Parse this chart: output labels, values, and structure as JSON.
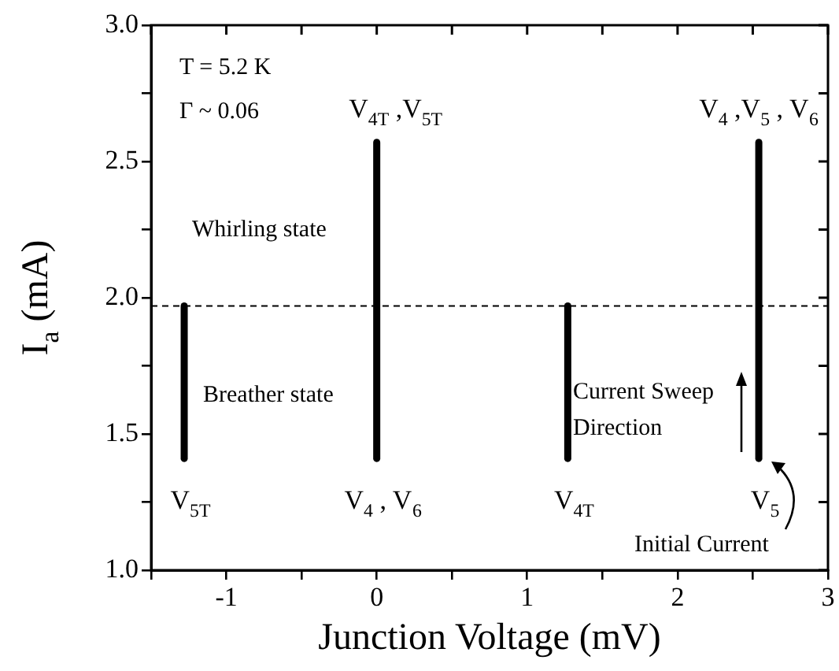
{
  "chart_data": {
    "type": "line",
    "xlabel": "Junction Voltage (mV)",
    "ylabel": "I$_{a}$ (mA)",
    "xlim": [
      -1.5,
      3
    ],
    "xticks": [
      {
        "value": -1.5,
        "label": null
      },
      -1,
      {
        "value": -0.5,
        "label": null
      },
      0,
      {
        "value": 0.5,
        "label": null
      },
      1,
      {
        "value": 1.5,
        "label": null
      },
      2,
      {
        "value": 2.5,
        "label": null
      },
      3
    ],
    "ylim": [
      1,
      3
    ],
    "yticks": [
      {
        "value": 1,
        "label": "1.0"
      },
      {
        "value": 1.25,
        "label": null
      },
      1.5,
      {
        "value": 1.75,
        "label": null
      },
      {
        "value": 2,
        "label": "2.0"
      },
      {
        "value": 2.25,
        "label": null
      },
      2.5,
      {
        "value": 2.75,
        "label": null
      },
      {
        "value": 3,
        "label": "3.0"
      }
    ],
    "series": [
      {
        "color": "#000000",
        "x": [
          -1.28,
          -1.28
        ],
        "values": [
          1.41,
          1.97
        ]
      },
      {
        "color": "#000000",
        "x": [
          0,
          0
        ],
        "values": [
          1.41,
          2.57
        ]
      },
      {
        "color": "#000000",
        "x": [
          1.27,
          1.27
        ],
        "values": [
          1.41,
          1.97
        ]
      },
      {
        "color": "#000000",
        "x": [
          2.54,
          2.54
        ],
        "values": [
          1.41,
          2.57
        ]
      }
    ],
    "ref_lines": [
      {
        "axis": "y",
        "value": 1.97,
        "color": "#000000",
        "line_style": "dashed"
      }
    ],
    "annotations": [
      "T = 5.2 K",
      "Γ ~ 0.06",
      "Whirling state",
      "Breather state",
      "Current Sweep Direction",
      "Initial Current",
      {
        "text": "V$_{4T}$ ,V$_{5T}$",
        "x": 0,
        "y": 2.57
      },
      {
        "text": "V$_{4}$ ,V$_{5}$ , V$_{6}$",
        "x": 2.54,
        "y": 2.57
      },
      {
        "text": "V$_{5T}$",
        "x": -1.28,
        "y": 1.41
      },
      {
        "text": "V$_{4}$ , V$_{6}$",
        "x": 0,
        "y": 1.41
      },
      {
        "text": "V$_{4T}$",
        "x": 1.27,
        "y": 1.41
      },
      {
        "text": "V$_{5}$",
        "x": 2.54,
        "y": 1.41
      }
    ],
    "legend": false
  }
}
